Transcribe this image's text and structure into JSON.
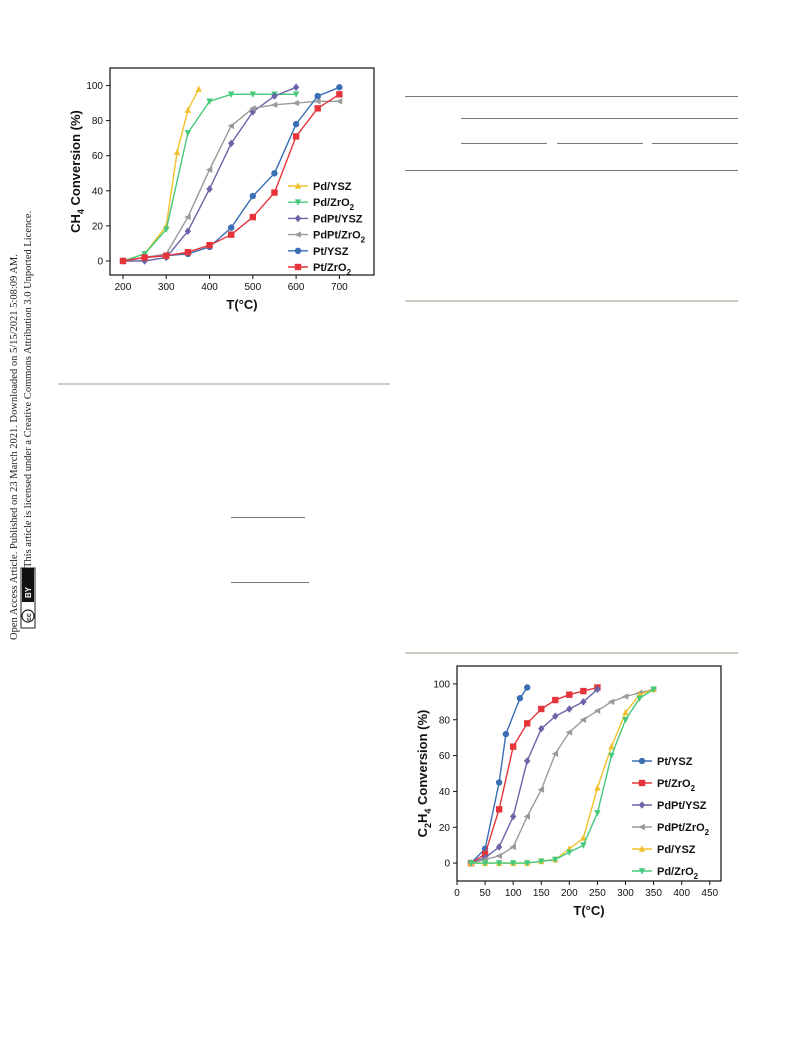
{
  "sidebar": {
    "line1": "Open Access Article. Published on 23 March 2021. Downloaded on 5/15/2021 5:08:09 AM.",
    "line2": "This article is licensed under a Creative Commons Attribution 3.0 Unported Licence.",
    "cc_badge": "cc",
    "by_badge": "BY"
  },
  "chart_data": [
    {
      "type": "line",
      "title": "",
      "xlabel": "T(°C)",
      "ylabel": "CH4 Conversion (%)",
      "ylabel_main": "CH",
      "ylabel_sub": "4",
      "ylabel_rest": " Conversion (%)",
      "xlim": [
        170,
        780
      ],
      "ylim": [
        -8,
        110
      ],
      "xticks": [
        200,
        300,
        400,
        500,
        600,
        700
      ],
      "yticks": [
        0,
        20,
        40,
        60,
        80,
        100
      ],
      "grid": false,
      "legend_position": "right",
      "series": [
        {
          "name": "Pd/YSZ",
          "name_main": "Pd/YSZ",
          "name_sub": "",
          "color": "#f2c12e",
          "marker": "triangle-up",
          "x": [
            200,
            250,
            300,
            325,
            350,
            375
          ],
          "y": [
            0,
            4,
            20,
            62,
            86,
            98
          ]
        },
        {
          "name": "Pd/ZrO2",
          "name_main": "Pd/ZrO",
          "name_sub": "2",
          "color": "#45c97a",
          "marker": "triangle-down",
          "x": [
            200,
            250,
            300,
            350,
            400,
            450,
            500,
            550,
            600
          ],
          "y": [
            0,
            4,
            18,
            73,
            91,
            95,
            95,
            95,
            95
          ]
        },
        {
          "name": "PdPt/YSZ",
          "name_main": "PdPt/YSZ",
          "name_sub": "",
          "color": "#6b64a8",
          "marker": "diamond",
          "x": [
            200,
            250,
            300,
            350,
            400,
            450,
            500,
            550,
            600
          ],
          "y": [
            0,
            0,
            2,
            17,
            41,
            67,
            85,
            94,
            99
          ]
        },
        {
          "name": "PdPt/ZrO2",
          "name_main": "PdPt/ZrO",
          "name_sub": "2",
          "color": "#9a9a9a",
          "marker": "triangle-left",
          "x": [
            200,
            250,
            300,
            350,
            400,
            450,
            500,
            550,
            600,
            650,
            700
          ],
          "y": [
            0,
            2,
            4,
            25,
            52,
            77,
            87,
            89,
            90,
            91,
            91
          ]
        },
        {
          "name": "Pt/YSZ",
          "name_main": "Pt/YSZ",
          "name_sub": "",
          "color": "#3a6eb5",
          "marker": "circle",
          "x": [
            200,
            250,
            300,
            350,
            400,
            450,
            500,
            550,
            600,
            650,
            700
          ],
          "y": [
            0,
            2,
            3,
            4,
            8,
            19,
            37,
            50,
            78,
            94,
            99
          ]
        },
        {
          "name": "Pt/ZrO2",
          "name_main": "Pt/ZrO",
          "name_sub": "2",
          "color": "#e5353a",
          "marker": "square",
          "x": [
            200,
            250,
            300,
            350,
            400,
            450,
            500,
            550,
            600,
            650,
            700
          ],
          "y": [
            0,
            2,
            3,
            5,
            9,
            15,
            25,
            39,
            71,
            87,
            95
          ]
        }
      ]
    },
    {
      "type": "line",
      "title": "",
      "xlabel": "T(°C)",
      "ylabel": "C2H4 Conversion (%)",
      "ylabel_main": "C",
      "ylabel_sub": "2",
      "ylabel_mid": "H",
      "ylabel_sub2": "4",
      "ylabel_rest": " Conversion (%)",
      "xlim": [
        0,
        470
      ],
      "ylim": [
        -10,
        110
      ],
      "xticks": [
        0,
        50,
        100,
        150,
        200,
        250,
        300,
        350,
        400,
        450
      ],
      "yticks": [
        0,
        20,
        40,
        60,
        80,
        100
      ],
      "grid": false,
      "legend_position": "right",
      "series": [
        {
          "name": "Pt/YSZ",
          "name_main": "Pt/YSZ",
          "name_sub": "",
          "color": "#3a6eb5",
          "marker": "circle",
          "x": [
            25,
            50,
            75,
            87,
            112,
            125
          ],
          "y": [
            0,
            8,
            45,
            72,
            92,
            98
          ]
        },
        {
          "name": "Pt/ZrO2",
          "name_main": "Pt/ZrO",
          "name_sub": "2",
          "color": "#e5353a",
          "marker": "square",
          "x": [
            25,
            50,
            75,
            100,
            125,
            150,
            175,
            200,
            225,
            250
          ],
          "y": [
            0,
            5,
            30,
            65,
            78,
            86,
            91,
            94,
            96,
            98
          ]
        },
        {
          "name": "PdPt/YSZ",
          "name_main": "PdPt/YSZ",
          "name_sub": "",
          "color": "#6b64a8",
          "marker": "diamond",
          "x": [
            25,
            50,
            75,
            100,
            125,
            150,
            175,
            200,
            225,
            250
          ],
          "y": [
            0,
            3,
            9,
            26,
            57,
            75,
            82,
            86,
            90,
            97
          ]
        },
        {
          "name": "PdPt/ZrO2",
          "name_main": "PdPt/ZrO",
          "name_sub": "2",
          "color": "#9a9a9a",
          "marker": "triangle-left",
          "x": [
            25,
            50,
            75,
            100,
            125,
            150,
            175,
            200,
            225,
            250,
            275,
            300,
            325,
            350
          ],
          "y": [
            0,
            2,
            4,
            9,
            26,
            41,
            61,
            73,
            80,
            85,
            90,
            93,
            95,
            97
          ]
        },
        {
          "name": "Pd/YSZ",
          "name_main": "Pd/YSZ",
          "name_sub": "",
          "color": "#f2c12e",
          "marker": "triangle-up",
          "x": [
            25,
            50,
            75,
            100,
            125,
            150,
            175,
            200,
            225,
            250,
            275,
            300,
            325,
            350
          ],
          "y": [
            0,
            0,
            0,
            0,
            0,
            1,
            2,
            8,
            14,
            42,
            65,
            84,
            94,
            97
          ]
        },
        {
          "name": "Pd/ZrO2",
          "name_main": "Pd/ZrO",
          "name_sub": "2",
          "color": "#45c97a",
          "marker": "triangle-down",
          "x": [
            25,
            50,
            75,
            100,
            125,
            150,
            175,
            200,
            225,
            250,
            275,
            300,
            325,
            350
          ],
          "y": [
            0,
            0,
            0,
            0,
            0,
            1,
            2,
            6,
            10,
            28,
            60,
            80,
            92,
            97
          ]
        }
      ]
    }
  ]
}
